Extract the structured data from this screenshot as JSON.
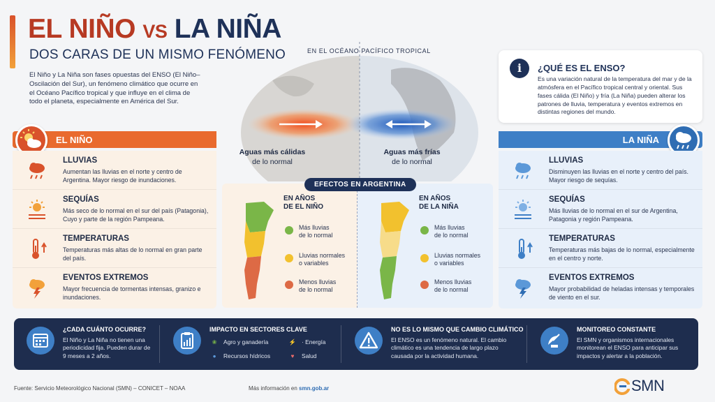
{
  "header": {
    "title_part1": "EL NIÑO",
    "title_vs": "VS",
    "title_part2": "LA NIÑA",
    "subtitle": "DOS CARAS DE UN MISMO FENÓMENO",
    "intro": "El Niño y La Niña son fases opuestas del ENSO (El Niño–Oscilación del Sur), un fenómeno climático que ocurre en el Océano Pacífico tropical y que influye en el clima de todo el planeta, especialmente en América del Sur."
  },
  "globe": {
    "label": "EN EL OCÉANO PACÍFICO TROPICAL",
    "left_caption_bold": "Aguas más cálidas",
    "left_caption_rest": "de lo normal",
    "right_caption_bold": "Aguas más frías",
    "right_caption_rest": "de lo normal"
  },
  "enso": {
    "icon": "i",
    "title": "¿QUÉ ES EL ENSO?",
    "text": "Es una variación natural de la temperatura del mar y de la atmósfera en el Pacífico tropical central y oriental. Sus fases cálida (El Niño) y fría (La Niña) pueden alterar los patrones de lluvia, temperatura y eventos extremos en distintas regiones del mundo."
  },
  "el_nino": {
    "label": "EL NIÑO",
    "items": [
      {
        "icon": "rain-cloud-icon",
        "title": "LLUVIAS",
        "text": "Aumentan las lluvias en el norte y centro de Argentina. Mayor riesgo de inundaciones."
      },
      {
        "icon": "sun-heat-icon",
        "title": "SEQUÍAS",
        "text": "Más seco de lo normal en el sur del país (Patagonia), Cuyo y parte de la región Pampeana."
      },
      {
        "icon": "thermometer-up-icon",
        "title": "TEMPERATURAS",
        "text": "Temperaturas más altas de lo normal en gran parte del país."
      },
      {
        "icon": "storm-icon",
        "title": "EVENTOS EXTREMOS",
        "text": "Mayor frecuencia de tormentas intensas, granizo e inundaciones."
      }
    ]
  },
  "la_nina": {
    "label": "LA NIÑA",
    "items": [
      {
        "icon": "rain-cloud-icon",
        "title": "LLUVIAS",
        "text": "Disminuyen las lluvias en el norte y centro del país. Mayor riesgo de sequías."
      },
      {
        "icon": "sun-icon",
        "title": "SEQUÍAS",
        "text": "Más lluvias de lo normal en el sur de Argentina, Patagonia y región Pampeana."
      },
      {
        "icon": "thermometer-up-icon",
        "title": "TEMPERATURAS",
        "text": "Temperaturas más bajas de lo normal, especialmente en el centro y norte."
      },
      {
        "icon": "snow-storm-icon",
        "title": "EVENTOS EXTREMOS",
        "text": "Mayor probabilidad de heladas intensas y temporales de viento en el sur."
      }
    ]
  },
  "effects": {
    "title": "EFECTOS EN ARGENTINA",
    "left_title_1": "EN AÑOS",
    "left_title_2": "DE EL NIÑO",
    "right_title_1": "EN AÑOS",
    "right_title_2": "DE LA NIÑA",
    "legend": [
      {
        "color": "#7ab648",
        "line1": "Más lluvias",
        "line2": "de lo normal"
      },
      {
        "color": "#f2c12e",
        "line1": "Lluvias normales",
        "line2": "o variables"
      },
      {
        "color": "#dd6a45",
        "line1": "Menos lluvias",
        "line2": "de lo normal"
      }
    ]
  },
  "bottom": {
    "freq_title": "¿CADA CUÁNTO OCURRE?",
    "freq_text": "El Niño y La Niña no tienen una periodicidad fija. Pueden durar de 9 meses a 2 años.",
    "impact_title": "IMPACTO EN SECTORES CLAVE",
    "sectors": [
      "Agro y ganadería",
      "· Energía",
      "Recursos hídricos",
      "Salud"
    ],
    "climate_title": "NO ES LO MISMO QUE CAMBIO CLIMÁTICO",
    "climate_text": "El ENSO es un fenómeno natural. El cambio climático es una tendencia de largo plazo causada por la actividad humana.",
    "monitor_title": "MONITOREO CONSTANTE",
    "monitor_text": "El SMN y organismos internacionales monitorean el ENSO para anticipar sus impactos y alertar a la población."
  },
  "footer": {
    "source": "Fuente: Servicio Meteorológico Nacional (SMN) – CONICET – NOAA",
    "more_label": "Más información en",
    "more_link": "smn.gob.ar",
    "logo": "SMN"
  },
  "colors": {
    "warm": "#e96a2e",
    "cold": "#3e7fc6",
    "navy": "#1e3158"
  }
}
